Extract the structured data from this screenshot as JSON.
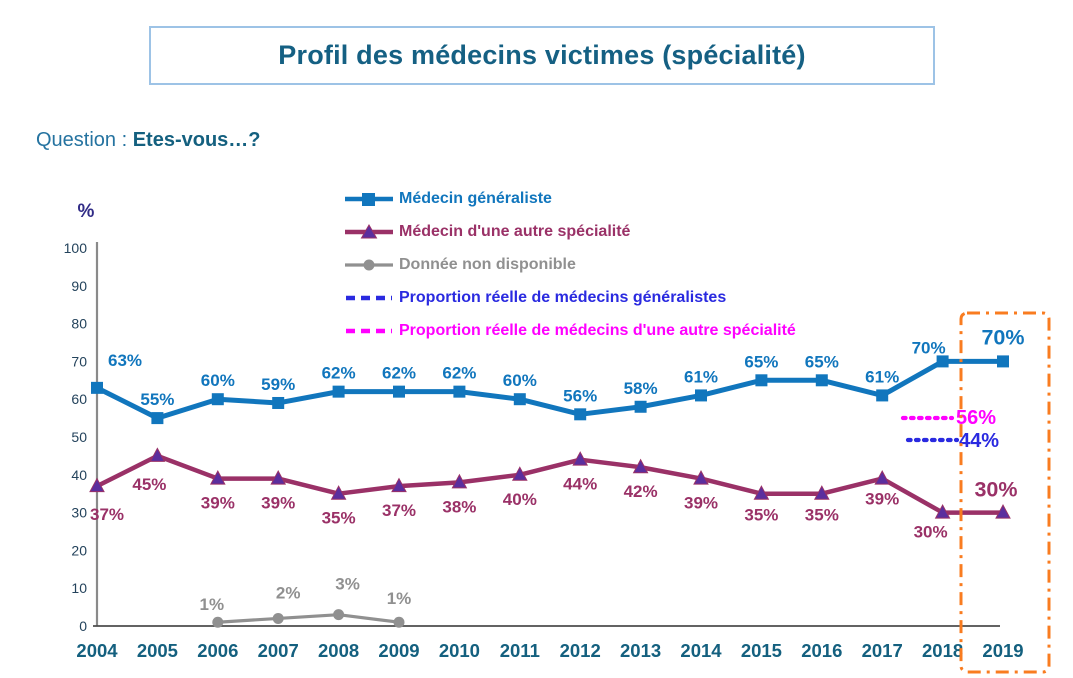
{
  "title": "Profil des médecins victimes (spécialité)",
  "question": {
    "prefix": "Question : ",
    "text": "Etes-vous…?"
  },
  "chart_data": {
    "type": "line",
    "title": "Profil des médecins victimes (spécialité)",
    "ylabel": "%",
    "xlabel": "",
    "ylim": [
      0,
      100
    ],
    "y_ticks": [
      0,
      10,
      20,
      30,
      40,
      50,
      60,
      70,
      80,
      90,
      100
    ],
    "grid": false,
    "legend_position": "top-center",
    "label_suffix": "%",
    "categories": [
      2004,
      2005,
      2006,
      2007,
      2008,
      2009,
      2010,
      2011,
      2012,
      2013,
      2014,
      2015,
      2016,
      2017,
      2018,
      2019
    ],
    "series": [
      {
        "name": "Médecin généraliste",
        "color": "#1176BD",
        "marker": "square",
        "values": [
          63,
          55,
          60,
          59,
          62,
          62,
          62,
          60,
          56,
          58,
          61,
          65,
          65,
          61,
          70,
          70
        ]
      },
      {
        "name": "Médecin d'une autre spécialité",
        "color": "#9A3167",
        "marker": "triangle",
        "marker_color": "#5B2E9E",
        "values": [
          37,
          45,
          39,
          39,
          35,
          37,
          38,
          40,
          44,
          42,
          39,
          35,
          35,
          39,
          30,
          30
        ]
      },
      {
        "name": "Donnée non disponible",
        "color": "#909090",
        "marker": "circle",
        "values": [
          null,
          null,
          1,
          2,
          3,
          1,
          null,
          null,
          null,
          null,
          null,
          null,
          null,
          null,
          null,
          null
        ]
      }
    ],
    "reference_lines": [
      {
        "name": "Proportion réelle de médecins d'une autre spécialité",
        "label": "56%",
        "value": 56,
        "color": "#FF00FF"
      },
      {
        "name": "Proportion réelle de médecins généralistes",
        "label": "44%",
        "value": 44,
        "color": "#2A2AE0"
      }
    ],
    "legend": [
      {
        "label": "Médecin généraliste",
        "color": "#1176BD",
        "marker": "square-line"
      },
      {
        "label": "Médecin d'une autre spécialité",
        "color": "#9A3167",
        "marker": "triangle-line",
        "marker_color": "#5B2E9E"
      },
      {
        "label": "Donnée non disponible",
        "color": "#909090",
        "marker": "circle-line"
      },
      {
        "label": "Proportion réelle de médecins généralistes",
        "color": "#2A2AE0",
        "marker": "dashes"
      },
      {
        "label": "Proportion réelle de médecins d'une autre spécialité",
        "color": "#FF00FF",
        "marker": "dashes"
      }
    ],
    "highlight": {
      "year": 2019,
      "color": "#F97C20"
    }
  }
}
